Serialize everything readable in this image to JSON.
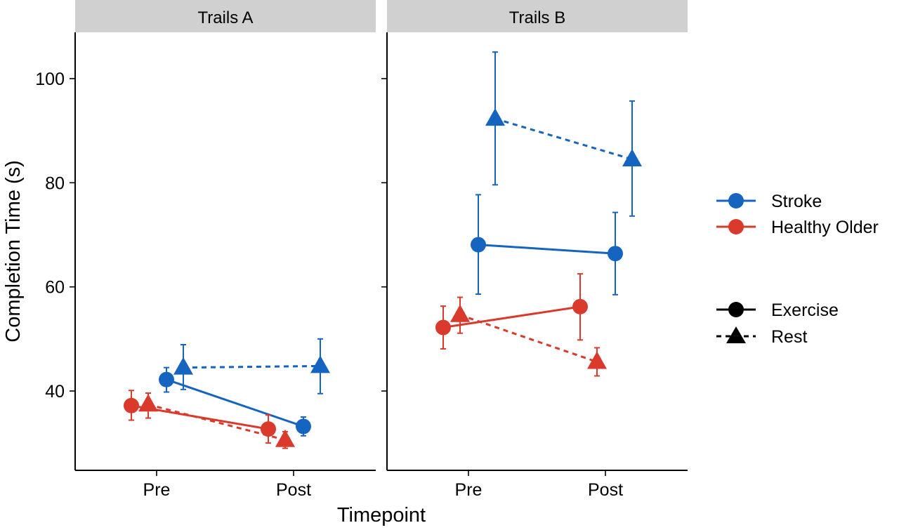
{
  "colors": {
    "Stroke": "#1565C0",
    "Healthy Older": "#D93A2B",
    "strip": "#D0D0D0"
  },
  "chart_data": {
    "type": "line",
    "xlabel": "Timepoint",
    "ylabel": "Completion Time (s)",
    "x_categories": [
      "Pre",
      "Post"
    ],
    "ylim": [
      27,
      109
    ],
    "y_ticks": [
      40,
      60,
      80,
      100
    ],
    "y_tick_labels": [
      "40",
      "60",
      "80",
      "100"
    ],
    "grid": false,
    "legend_position": "right",
    "legends": {
      "group": [
        "Stroke",
        "Healthy Older"
      ],
      "condition": [
        "Exercise",
        "Rest"
      ]
    },
    "panels": [
      {
        "title": "Trails A",
        "series": [
          {
            "group": "Stroke",
            "condition": "Exercise",
            "values": [
              42.2,
              33.2
            ],
            "lower": [
              39.8,
              31.4
            ],
            "upper": [
              44.5,
              35.0
            ]
          },
          {
            "group": "Stroke",
            "condition": "Rest",
            "values": [
              44.5,
              44.8
            ],
            "lower": [
              40.3,
              39.5
            ],
            "upper": [
              48.9,
              50.0
            ]
          },
          {
            "group": "Healthy Older",
            "condition": "Exercise",
            "values": [
              37.2,
              32.7
            ],
            "lower": [
              34.4,
              30.0
            ],
            "upper": [
              40.1,
              35.4
            ]
          },
          {
            "group": "Healthy Older",
            "condition": "Rest",
            "values": [
              37.4,
              30.6
            ],
            "lower": [
              34.8,
              29.0
            ],
            "upper": [
              39.6,
              32.2
            ]
          }
        ]
      },
      {
        "title": "Trails B",
        "series": [
          {
            "group": "Stroke",
            "condition": "Exercise",
            "values": [
              68.1,
              66.4
            ],
            "lower": [
              58.6,
              58.5
            ],
            "upper": [
              77.7,
              74.3
            ]
          },
          {
            "group": "Stroke",
            "condition": "Rest",
            "values": [
              92.3,
              84.5
            ],
            "lower": [
              79.6,
              73.6
            ],
            "upper": [
              105.1,
              95.7
            ]
          },
          {
            "group": "Healthy Older",
            "condition": "Exercise",
            "values": [
              52.2,
              56.2
            ],
            "lower": [
              48.1,
              49.8
            ],
            "upper": [
              56.3,
              62.5
            ]
          },
          {
            "group": "Healthy Older",
            "condition": "Rest",
            "values": [
              54.6,
              45.6
            ],
            "lower": [
              51.1,
              42.9
            ],
            "upper": [
              58.0,
              48.3
            ]
          }
        ]
      }
    ]
  }
}
